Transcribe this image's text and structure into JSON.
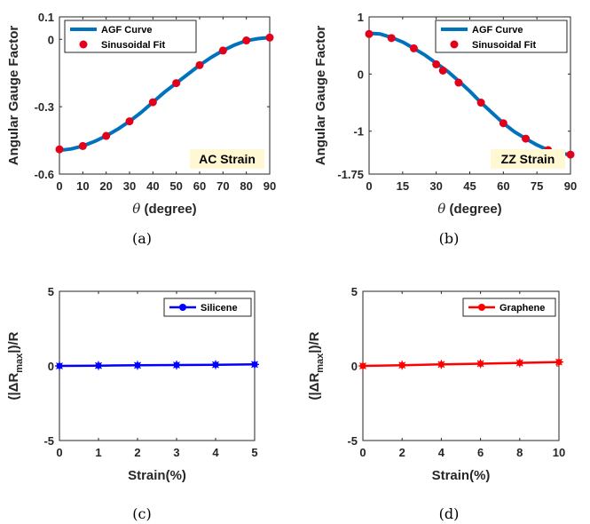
{
  "chart_data": [
    {
      "id": "a",
      "type": "line",
      "caption": "(a)",
      "xlabel": "θ (degree)",
      "ylabel": "Angular Gauge Factor",
      "xlim": [
        0,
        90
      ],
      "ylim": [
        -0.6,
        0.1
      ],
      "xticks": [
        0,
        10,
        20,
        30,
        40,
        50,
        60,
        70,
        80,
        90
      ],
      "yticks": [
        0.1,
        0,
        -0.3,
        -0.6
      ],
      "ytick_labels": [
        "0.1",
        "0",
        "-0.3",
        "-0.6"
      ],
      "legend": [
        "AGF Curve",
        "Sinusoidal Fit"
      ],
      "legend_position": "top-left",
      "annotation": "AC Strain",
      "series": [
        {
          "name": "AGF Curve",
          "style": "line",
          "color": "#0072BD",
          "x": [
            0,
            2,
            5,
            10,
            15,
            20,
            25,
            30,
            35,
            40,
            45,
            50,
            55,
            60,
            65,
            70,
            75,
            80,
            85,
            88,
            90
          ],
          "y": [
            -0.49,
            -0.492,
            -0.488,
            -0.475,
            -0.455,
            -0.43,
            -0.4,
            -0.365,
            -0.325,
            -0.28,
            -0.235,
            -0.195,
            -0.155,
            -0.115,
            -0.08,
            -0.05,
            -0.025,
            -0.006,
            0.003,
            0.006,
            0.008
          ]
        },
        {
          "name": "Sinusoidal Fit",
          "style": "markers",
          "color": "#E3001B",
          "x": [
            0,
            10,
            20,
            30,
            40,
            50,
            60,
            70,
            80,
            90
          ],
          "y": [
            -0.49,
            -0.475,
            -0.43,
            -0.365,
            -0.28,
            -0.195,
            -0.115,
            -0.05,
            -0.005,
            0.008
          ]
        }
      ]
    },
    {
      "id": "b",
      "type": "line",
      "caption": "(b)",
      "xlabel": "θ (degree)",
      "ylabel": "Angular Gauge Factor",
      "xlim": [
        0,
        90
      ],
      "ylim": [
        -1.75,
        1
      ],
      "xticks": [
        0,
        15,
        30,
        45,
        60,
        75,
        90
      ],
      "yticks": [
        1,
        0,
        -1,
        -1.75
      ],
      "ytick_labels": [
        "1",
        "0",
        "-1",
        "-1.75"
      ],
      "legend": [
        "AGF Curve",
        "Sinusoidal Fit"
      ],
      "legend_position": "top-right",
      "annotation": "ZZ Strain",
      "series": [
        {
          "name": "AGF Curve",
          "style": "line",
          "color": "#0072BD",
          "x": [
            0,
            2,
            5,
            10,
            15,
            20,
            25,
            30,
            35,
            40,
            45,
            50,
            55,
            60,
            65,
            70,
            75,
            80,
            85,
            88,
            90
          ],
          "y": [
            0.7,
            0.71,
            0.7,
            0.64,
            0.56,
            0.45,
            0.33,
            0.19,
            0.05,
            -0.12,
            -0.3,
            -0.5,
            -0.68,
            -0.86,
            -1.01,
            -1.13,
            -1.24,
            -1.33,
            -1.38,
            -1.4,
            -1.41
          ]
        },
        {
          "name": "Sinusoidal Fit",
          "style": "markers",
          "color": "#E3001B",
          "x": [
            0,
            10,
            20,
            30,
            33,
            40,
            50,
            60,
            70,
            80,
            90
          ],
          "y": [
            0.7,
            0.63,
            0.45,
            0.17,
            0.06,
            -0.15,
            -0.5,
            -0.86,
            -1.13,
            -1.33,
            -1.41
          ]
        }
      ]
    },
    {
      "id": "c",
      "type": "line",
      "caption": "(c)",
      "xlabel": "Strain(%)",
      "ylabel": "(|ΔRmax|)/R",
      "xlim": [
        0,
        5
      ],
      "ylim": [
        -5,
        5
      ],
      "xticks": [
        0,
        1,
        2,
        3,
        4,
        5
      ],
      "yticks": [
        5,
        0,
        -5
      ],
      "ytick_labels": [
        "5",
        "0",
        "-5"
      ],
      "legend": [
        "Silicene"
      ],
      "legend_position": "top-right",
      "series": [
        {
          "name": "Silicene",
          "style": "line+markers",
          "color": "#0000FF",
          "x": [
            0,
            1,
            2,
            3,
            4,
            5
          ],
          "y": [
            0.0,
            0.02,
            0.04,
            0.06,
            0.08,
            0.1
          ]
        }
      ]
    },
    {
      "id": "d",
      "type": "line",
      "caption": "(d)",
      "xlabel": "Strain(%)",
      "ylabel": "(|ΔRmax|)/R",
      "xlim": [
        0,
        10
      ],
      "ylim": [
        -5,
        5
      ],
      "xticks": [
        0,
        2,
        4,
        6,
        8,
        10
      ],
      "yticks": [
        5,
        0,
        -5
      ],
      "ytick_labels": [
        "5",
        "0",
        "-5"
      ],
      "legend": [
        "Graphene"
      ],
      "legend_position": "top-right",
      "series": [
        {
          "name": "Graphene",
          "style": "line+markers",
          "color": "#FF0000",
          "x": [
            0,
            2,
            4,
            6,
            8,
            10
          ],
          "y": [
            0.0,
            0.05,
            0.1,
            0.15,
            0.2,
            0.26
          ]
        }
      ]
    }
  ]
}
